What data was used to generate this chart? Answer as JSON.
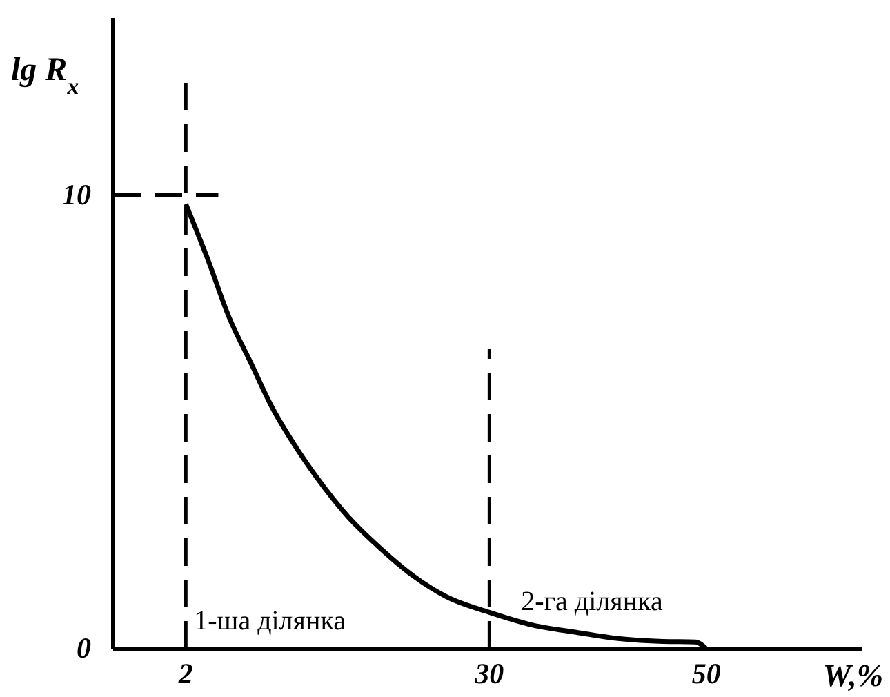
{
  "chart_data": {
    "type": "line",
    "xlabel": "W,%",
    "ylabel": "lg R$_{x}$",
    "xlim": [
      -4.7,
      64.4
    ],
    "ylim": [
      0,
      13.9
    ],
    "xticks": [
      2,
      30,
      50
    ],
    "yticks": [
      0,
      10
    ],
    "series": [
      {
        "x": [
          2,
          4,
          6,
          8,
          10,
          12,
          14,
          17,
          20,
          23,
          26,
          30,
          34,
          38,
          42,
          46,
          49,
          50
        ],
        "values": [
          9.8,
          8.6,
          7.3,
          6.3,
          5.3,
          4.5,
          3.8,
          2.9,
          2.2,
          1.6,
          1.15,
          0.8,
          0.52,
          0.36,
          0.22,
          0.16,
          0.15,
          0
        ],
        "color": "#000000"
      },
      {
        "x": [
          -4.7,
          5
        ],
        "values": [
          10,
          10
        ],
        "color": "#000000",
        "line_style": "dashed"
      },
      {
        "x": [
          2,
          2
        ],
        "values": [
          0,
          12.5
        ],
        "color": "#000000",
        "line_style": "dashed"
      },
      {
        "x": [
          30,
          30
        ],
        "values": [
          0,
          6.6
        ],
        "color": "#000000",
        "line_style": "dashed"
      }
    ],
    "annotations": [
      "1-ша ділянка",
      "2-га ділянка"
    ]
  }
}
